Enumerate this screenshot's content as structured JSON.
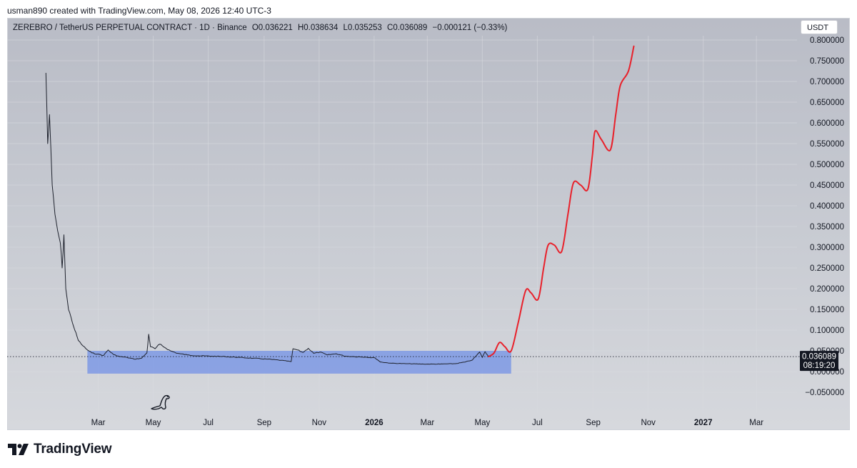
{
  "caption": "usman890 created with TradingView.com, May 08, 2026 12:40 UTC-3",
  "header": {
    "symbol": "ZEREBRO / TetherUS PERPETUAL CONTRACT · 1D · Binance",
    "open": "O0.036221",
    "high": "H0.038634",
    "low": "L0.035253",
    "close": "C0.036089",
    "change": "−0.000121 (−0.33%)"
  },
  "currency_button": "USDT",
  "brand": "TradingView",
  "colors": {
    "price_line": "#1e222d",
    "projection": "#e8202a",
    "range_box": "#6f8fe6",
    "price_label_bg": "#131722"
  },
  "chart_data": {
    "type": "line",
    "title": "ZEREBRO / TetherUS PERPETUAL CONTRACT · 1D · Binance",
    "x_tick_labels": [
      "Mar",
      "May",
      "Jul",
      "Sep",
      "Nov",
      "2026",
      "Mar",
      "May",
      "Jul",
      "Sep",
      "Nov",
      "2027",
      "Mar"
    ],
    "y_tick_labels": [
      "0.800000",
      "0.750000",
      "0.700000",
      "0.650000",
      "0.600000",
      "0.550000",
      "0.500000",
      "0.450000",
      "0.400000",
      "0.350000",
      "0.300000",
      "0.250000",
      "0.200000",
      "0.150000",
      "0.100000",
      "0.050000",
      "0.000000",
      "−0.050000"
    ],
    "ylim": [
      -0.06,
      0.82
    ],
    "xlim": [
      "2024-11-20",
      "2027-04-15"
    ],
    "current_price_label": "0.036089",
    "countdown_label": "08:19:20",
    "current_price": 0.036089,
    "series": [
      {
        "name": "",
        "style": "price",
        "points": [
          [
            "2025-01-02",
            0.72
          ],
          [
            "2025-01-04",
            0.55
          ],
          [
            "2025-01-06",
            0.62
          ],
          [
            "2025-01-09",
            0.45
          ],
          [
            "2025-01-12",
            0.38
          ],
          [
            "2025-01-15",
            0.34
          ],
          [
            "2025-01-18",
            0.31
          ],
          [
            "2025-01-20",
            0.25
          ],
          [
            "2025-01-22",
            0.33
          ],
          [
            "2025-01-24",
            0.2
          ],
          [
            "2025-01-27",
            0.15
          ],
          [
            "2025-01-30",
            0.13
          ],
          [
            "2025-02-03",
            0.1
          ],
          [
            "2025-02-07",
            0.075
          ],
          [
            "2025-02-12",
            0.062
          ],
          [
            "2025-02-17",
            0.052
          ],
          [
            "2025-02-22",
            0.045
          ],
          [
            "2025-02-28",
            0.042
          ],
          [
            "2025-03-07",
            0.039
          ],
          [
            "2025-03-12",
            0.052
          ],
          [
            "2025-03-18",
            0.041
          ],
          [
            "2025-03-25",
            0.036
          ],
          [
            "2025-04-02",
            0.034
          ],
          [
            "2025-04-10",
            0.03
          ],
          [
            "2025-04-18",
            0.032
          ],
          [
            "2025-04-24",
            0.045
          ],
          [
            "2025-04-26",
            0.09
          ],
          [
            "2025-04-28",
            0.06
          ],
          [
            "2025-05-03",
            0.055
          ],
          [
            "2025-05-08",
            0.066
          ],
          [
            "2025-05-14",
            0.058
          ],
          [
            "2025-05-20",
            0.05
          ],
          [
            "2025-05-28",
            0.044
          ],
          [
            "2025-06-08",
            0.04
          ],
          [
            "2025-06-20",
            0.038
          ],
          [
            "2025-07-05",
            0.037
          ],
          [
            "2025-07-20",
            0.036
          ],
          [
            "2025-08-05",
            0.034
          ],
          [
            "2025-08-20",
            0.032
          ],
          [
            "2025-09-05",
            0.03
          ],
          [
            "2025-09-20",
            0.027
          ],
          [
            "2025-10-01",
            0.024
          ],
          [
            "2025-10-03",
            0.055
          ],
          [
            "2025-10-08",
            0.052
          ],
          [
            "2025-10-14",
            0.046
          ],
          [
            "2025-10-20",
            0.056
          ],
          [
            "2025-10-26",
            0.044
          ],
          [
            "2025-11-02",
            0.047
          ],
          [
            "2025-11-10",
            0.04
          ],
          [
            "2025-11-20",
            0.043
          ],
          [
            "2025-11-30",
            0.037
          ],
          [
            "2025-12-10",
            0.036
          ],
          [
            "2025-12-22",
            0.035
          ],
          [
            "2026-01-02",
            0.033
          ],
          [
            "2026-01-08",
            0.023
          ],
          [
            "2026-01-20",
            0.02
          ],
          [
            "2026-02-05",
            0.019
          ],
          [
            "2026-02-25",
            0.018
          ],
          [
            "2026-03-15",
            0.018
          ],
          [
            "2026-04-01",
            0.019
          ],
          [
            "2026-04-12",
            0.023
          ],
          [
            "2026-04-20",
            0.028
          ],
          [
            "2026-04-25",
            0.04
          ],
          [
            "2026-04-28",
            0.047
          ],
          [
            "2026-05-01",
            0.034
          ],
          [
            "2026-05-04",
            0.048
          ],
          [
            "2026-05-08",
            0.036
          ]
        ]
      },
      {
        "name": "",
        "style": "projection",
        "points": [
          [
            "2026-05-08",
            0.036
          ],
          [
            "2026-05-14",
            0.045
          ],
          [
            "2026-05-20",
            0.07
          ],
          [
            "2026-05-26",
            0.06
          ],
          [
            "2026-06-02",
            0.05
          ],
          [
            "2026-06-10",
            0.12
          ],
          [
            "2026-06-18",
            0.195
          ],
          [
            "2026-06-24",
            0.19
          ],
          [
            "2026-07-02",
            0.175
          ],
          [
            "2026-07-08",
            0.25
          ],
          [
            "2026-07-13",
            0.305
          ],
          [
            "2026-07-20",
            0.305
          ],
          [
            "2026-07-28",
            0.29
          ],
          [
            "2026-08-04",
            0.38
          ],
          [
            "2026-08-10",
            0.455
          ],
          [
            "2026-08-18",
            0.45
          ],
          [
            "2026-08-26",
            0.44
          ],
          [
            "2026-08-31",
            0.52
          ],
          [
            "2026-09-03",
            0.58
          ],
          [
            "2026-09-10",
            0.56
          ],
          [
            "2026-09-20",
            0.535
          ],
          [
            "2026-09-26",
            0.62
          ],
          [
            "2026-10-01",
            0.69
          ],
          [
            "2026-10-10",
            0.725
          ],
          [
            "2026-10-16",
            0.785
          ]
        ]
      }
    ],
    "range_box": {
      "x_start": "2025-02-17",
      "x_end": "2026-06-02",
      "y_low": -0.005,
      "y_high": 0.05
    }
  }
}
